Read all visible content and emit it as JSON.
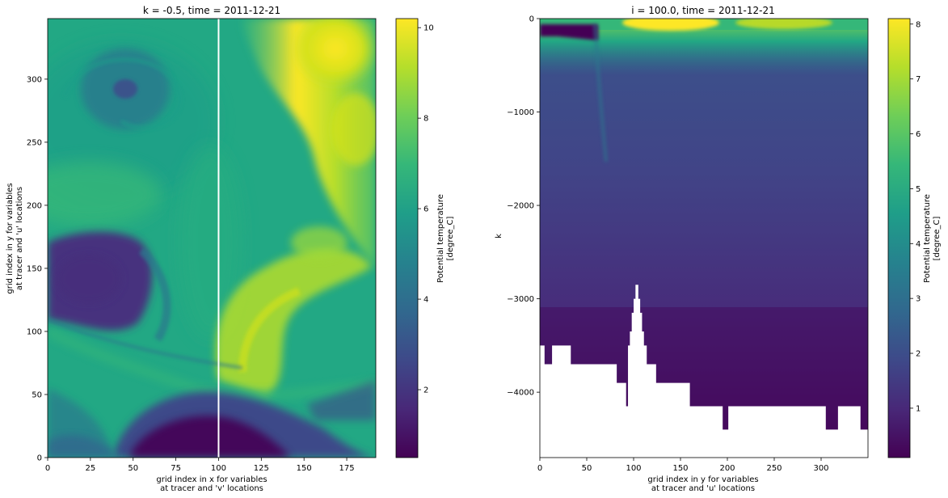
{
  "chart_data": [
    {
      "type": "heatmap",
      "title": "k = -0.5, time = 2011-12-21",
      "xlabel_lines": [
        "grid index in x for variables",
        "at tracer and 'v' locations"
      ],
      "ylabel_lines": [
        "grid index in y for variables",
        "at tracer and 'u' locations"
      ],
      "xlim": [
        0,
        192
      ],
      "ylim": [
        0,
        348
      ],
      "xticks": [
        0,
        25,
        50,
        75,
        100,
        125,
        150,
        175
      ],
      "yticks": [
        0,
        50,
        100,
        150,
        200,
        250,
        300
      ],
      "colormap": "viridis",
      "colorbar": {
        "label_lines": [
          "Potential temperature",
          "[degree_C]"
        ],
        "vmin": 0.5,
        "vmax": 10.2,
        "ticks": [
          2,
          4,
          6,
          8,
          10
        ]
      },
      "annotation": {
        "type": "vertical-line",
        "x": 100,
        "color": "#ffffff",
        "meaning": "section at i = 100"
      },
      "features": [
        {
          "kind": "warm-region",
          "where": "top-right",
          "approx_value": 9.8
        },
        {
          "kind": "cold-eddy",
          "where": "left-middle",
          "approx_value": 1.5
        },
        {
          "kind": "cold-region",
          "where": "bottom-center",
          "approx_value": 1.0
        },
        {
          "kind": "eddy",
          "where": "upper-left",
          "approx_value": 3.5
        }
      ]
    },
    {
      "type": "heatmap",
      "title": "i = 100.0, time = 2011-12-21",
      "xlabel_lines": [
        "grid index in y for variables",
        "at tracer and 'u' locations"
      ],
      "ylabel_lines": [
        "k"
      ],
      "xlim": [
        0,
        350
      ],
      "ylim": [
        -4700,
        0
      ],
      "xticks": [
        0,
        50,
        100,
        150,
        200,
        250,
        300
      ],
      "yticks": [
        -4000,
        -3000,
        -2000,
        -1000,
        0
      ],
      "ytick_labels": [
        "−4000",
        "−3000",
        "−2000",
        "−1000",
        "0"
      ],
      "colormap": "viridis",
      "colorbar": {
        "label_lines": [
          "Potential temperature",
          "[degree_C]"
        ],
        "vmin": 0.1,
        "vmax": 8.1,
        "ticks": [
          1,
          2,
          3,
          4,
          5,
          6,
          7,
          8
        ]
      },
      "bathymetry_profile": [
        {
          "x0": 0,
          "x1": 5,
          "depth": -3500
        },
        {
          "x0": 5,
          "x1": 13,
          "depth": -3700
        },
        {
          "x0": 13,
          "x1": 33,
          "depth": -3500
        },
        {
          "x0": 33,
          "x1": 82,
          "depth": -3700
        },
        {
          "x0": 82,
          "x1": 92,
          "depth": -3900
        },
        {
          "x0": 92,
          "x1": 94,
          "depth": -4150
        },
        {
          "x0": 94,
          "x1": 96,
          "depth": -3500
        },
        {
          "x0": 96,
          "x1": 98,
          "depth": -3350
        },
        {
          "x0": 98,
          "x1": 100,
          "depth": -3150
        },
        {
          "x0": 100,
          "x1": 102,
          "depth": -3000
        },
        {
          "x0": 102,
          "x1": 105,
          "depth": -2850
        },
        {
          "x0": 105,
          "x1": 107,
          "depth": -3000
        },
        {
          "x0": 107,
          "x1": 109,
          "depth": -3150
        },
        {
          "x0": 109,
          "x1": 111,
          "depth": -3350
        },
        {
          "x0": 111,
          "x1": 114,
          "depth": -3500
        },
        {
          "x0": 114,
          "x1": 124,
          "depth": -3700
        },
        {
          "x0": 124,
          "x1": 160,
          "depth": -3900
        },
        {
          "x0": 160,
          "x1": 195,
          "depth": -4150
        },
        {
          "x0": 195,
          "x1": 201,
          "depth": -4400
        },
        {
          "x0": 201,
          "x1": 305,
          "depth": -4150
        },
        {
          "x0": 305,
          "x1": 318,
          "depth": -4400
        },
        {
          "x0": 318,
          "x1": 342,
          "depth": -4150
        },
        {
          "x0": 342,
          "x1": 350,
          "depth": -4400
        }
      ]
    }
  ]
}
